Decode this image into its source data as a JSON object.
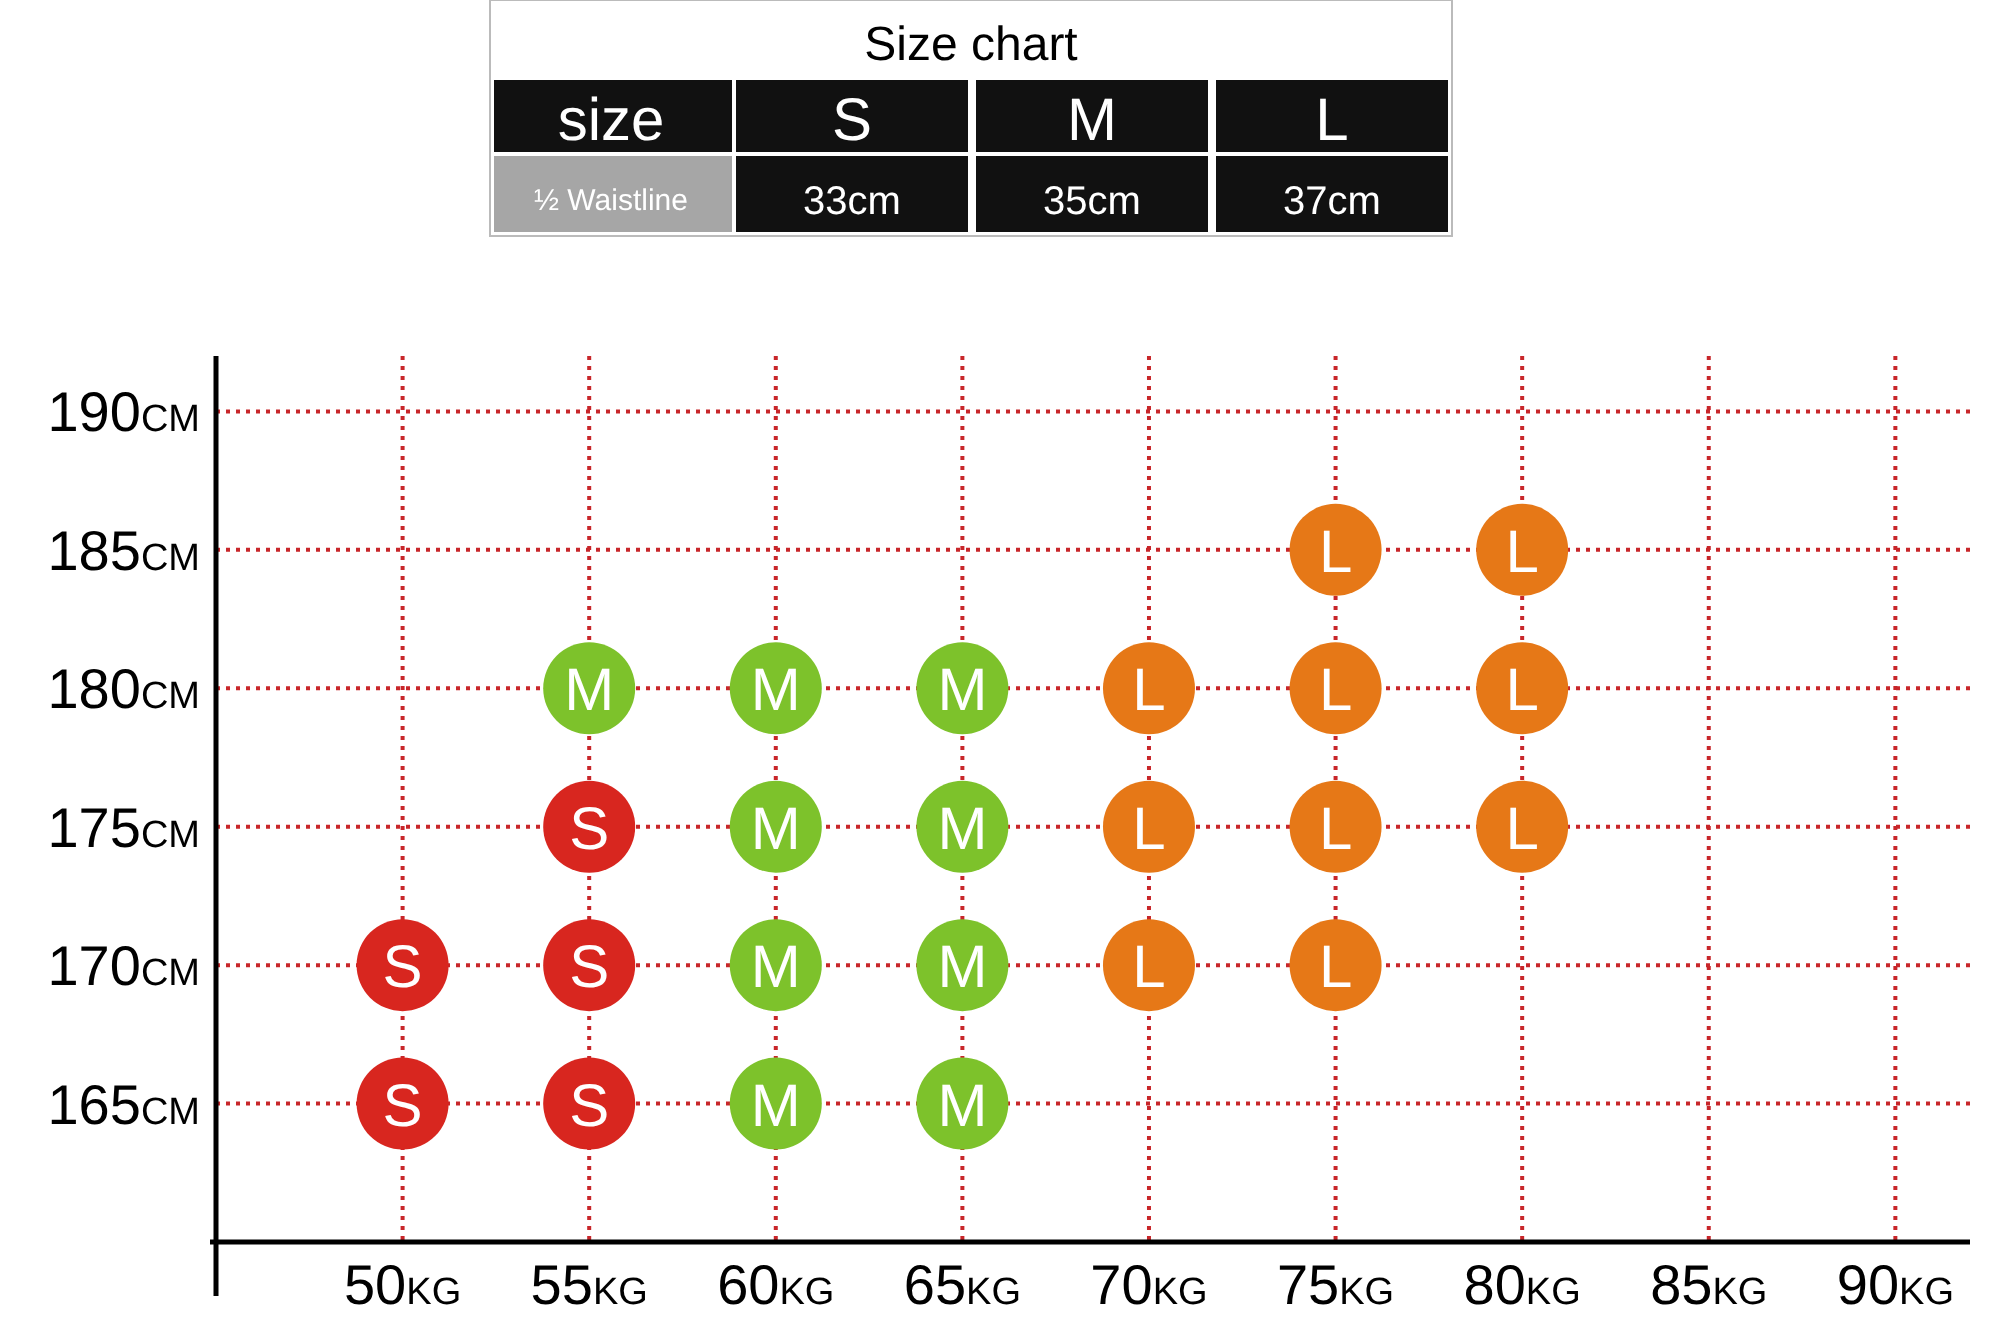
{
  "chart_data": [
    {
      "type": "other",
      "title": "Size chart",
      "xlabel": "size",
      "ylabel": "½ Waistline",
      "categories": [
        "S",
        "M",
        "L"
      ],
      "value_labels": [
        "33cm",
        "35cm",
        "37cm"
      ]
    },
    {
      "type": "scatter",
      "marker": "circle",
      "grid": true,
      "xlim": [
        45,
        92
      ],
      "ylim": [
        160,
        192
      ],
      "xticks": [
        {
          "value": 50,
          "label": "50KG"
        },
        {
          "value": 55,
          "label": "55KG"
        },
        {
          "value": 60,
          "label": "60KG"
        },
        {
          "value": 65,
          "label": "65KG"
        },
        {
          "value": 70,
          "label": "70KG"
        },
        {
          "value": 75,
          "label": "75KG"
        },
        {
          "value": 80,
          "label": "80KG"
        },
        {
          "value": 85,
          "label": "85KG"
        },
        {
          "value": 90,
          "label": "90KG"
        }
      ],
      "yticks": [
        {
          "value": 165,
          "label": "165CM"
        },
        {
          "value": 170,
          "label": "170CM"
        },
        {
          "value": 175,
          "label": "175CM"
        },
        {
          "value": 180,
          "label": "180CM"
        },
        {
          "value": 185,
          "label": "185CM"
        },
        {
          "value": 190,
          "label": "190CM"
        }
      ],
      "series": [
        {
          "name": "S",
          "color": "#d8261f",
          "x": [
            50,
            50,
            55,
            55,
            55
          ],
          "values": [
            170,
            165,
            175,
            170,
            165
          ]
        },
        {
          "name": "M",
          "color": "#7dc22b",
          "x": [
            55,
            60,
            60,
            60,
            60,
            65,
            65,
            65,
            65
          ],
          "values": [
            180,
            180,
            175,
            170,
            165,
            180,
            175,
            170,
            165
          ]
        },
        {
          "name": "L",
          "color": "#e67817",
          "x": [
            70,
            70,
            70,
            75,
            75,
            75,
            75,
            80,
            80,
            80
          ],
          "values": [
            180,
            175,
            170,
            185,
            180,
            175,
            170,
            185,
            180,
            175
          ]
        }
      ]
    }
  ]
}
